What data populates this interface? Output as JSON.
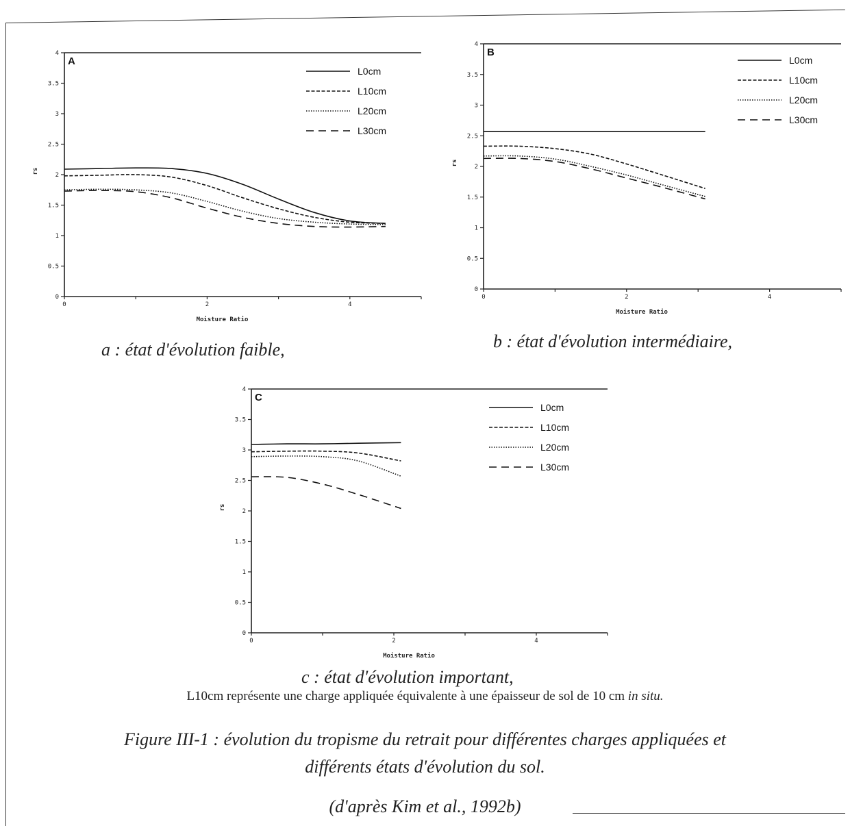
{
  "chart_data": [
    {
      "type": "line",
      "panel": "A",
      "xlabel": "Moisture Ratio",
      "ylabel": "rs",
      "xlim": [
        0,
        5
      ],
      "ylim": [
        0,
        4
      ],
      "x_ticks": [
        "0",
        "2",
        "4"
      ],
      "y_ticks": [
        "0",
        "0.5",
        "1",
        "1.5",
        "2",
        "2.5",
        "3",
        "3.5",
        "4"
      ],
      "legend_position": "top-right",
      "series": [
        {
          "name": "L0cm",
          "style": "solid",
          "x": [
            0,
            0.5,
            1,
            1.5,
            2,
            2.5,
            3,
            3.5,
            4,
            4.5
          ],
          "y": [
            2.09,
            2.1,
            2.11,
            2.1,
            2.02,
            1.84,
            1.6,
            1.38,
            1.24,
            1.2
          ]
        },
        {
          "name": "L10cm",
          "style": "dash-fine",
          "x": [
            0,
            0.5,
            1,
            1.5,
            2,
            2.5,
            3,
            3.5,
            4,
            4.5
          ],
          "y": [
            1.98,
            1.99,
            2.0,
            1.96,
            1.82,
            1.62,
            1.44,
            1.3,
            1.22,
            1.2
          ]
        },
        {
          "name": "L20cm",
          "style": "dotted",
          "x": [
            0,
            0.5,
            1,
            1.5,
            2,
            2.5,
            3,
            3.5,
            4,
            4.5
          ],
          "y": [
            1.75,
            1.76,
            1.75,
            1.7,
            1.56,
            1.4,
            1.28,
            1.22,
            1.19,
            1.18
          ]
        },
        {
          "name": "L30cm",
          "style": "dash-long",
          "x": [
            0,
            0.5,
            1,
            1.5,
            2,
            2.5,
            3,
            3.5,
            4,
            4.5
          ],
          "y": [
            1.73,
            1.74,
            1.72,
            1.62,
            1.45,
            1.3,
            1.2,
            1.15,
            1.14,
            1.15
          ]
        }
      ]
    },
    {
      "type": "line",
      "panel": "B",
      "xlabel": "Moisture Ratio",
      "ylabel": "rs",
      "xlim": [
        0,
        5
      ],
      "ylim": [
        0,
        4
      ],
      "x_ticks": [
        "0",
        "2",
        "4"
      ],
      "y_ticks": [
        "0",
        "0.5",
        "1",
        "1.5",
        "2",
        "2.5",
        "3",
        "3.5",
        "4"
      ],
      "legend_position": "top-right",
      "series": [
        {
          "name": "L0cm",
          "style": "solid",
          "x": [
            0,
            0.5,
            1,
            1.5,
            2,
            2.5,
            3.1
          ],
          "y": [
            2.57,
            2.57,
            2.57,
            2.57,
            2.57,
            2.57,
            2.57
          ]
        },
        {
          "name": "L10cm",
          "style": "dash-fine",
          "x": [
            0,
            0.5,
            1,
            1.5,
            2,
            2.5,
            3.1
          ],
          "y": [
            2.33,
            2.33,
            2.29,
            2.2,
            2.04,
            1.86,
            1.64
          ]
        },
        {
          "name": "L20cm",
          "style": "dotted",
          "x": [
            0,
            0.5,
            1,
            1.5,
            2,
            2.5,
            3.1
          ],
          "y": [
            2.17,
            2.17,
            2.12,
            2.0,
            1.86,
            1.7,
            1.51
          ]
        },
        {
          "name": "L30cm",
          "style": "dash-long",
          "x": [
            0,
            0.5,
            1,
            1.5,
            2,
            2.5,
            3.1
          ],
          "y": [
            2.13,
            2.13,
            2.08,
            1.96,
            1.81,
            1.66,
            1.47
          ]
        }
      ]
    },
    {
      "type": "line",
      "panel": "C",
      "xlabel": "Moisture Ratio",
      "ylabel": "rs",
      "xlim": [
        0,
        5
      ],
      "ylim": [
        0,
        4
      ],
      "x_ticks": [
        "0",
        "2",
        "4"
      ],
      "y_ticks": [
        "0",
        "0.5",
        "1",
        "1.5",
        "2",
        "2.5",
        "3",
        "3.5",
        "4"
      ],
      "legend_position": "top-right",
      "series": [
        {
          "name": "L0cm",
          "style": "solid",
          "x": [
            0,
            0.5,
            1,
            1.5,
            2.1
          ],
          "y": [
            3.09,
            3.1,
            3.1,
            3.11,
            3.12
          ]
        },
        {
          "name": "L10cm",
          "style": "dash-fine",
          "x": [
            0,
            0.5,
            1,
            1.5,
            2.1
          ],
          "y": [
            2.97,
            2.98,
            2.98,
            2.95,
            2.82
          ]
        },
        {
          "name": "L20cm",
          "style": "dotted",
          "x": [
            0,
            0.5,
            1,
            1.5,
            2.1
          ],
          "y": [
            2.89,
            2.9,
            2.89,
            2.82,
            2.57
          ]
        },
        {
          "name": "L30cm",
          "style": "dash-long",
          "x": [
            0,
            0.5,
            1,
            1.5,
            2.1
          ],
          "y": [
            2.56,
            2.55,
            2.44,
            2.27,
            2.04
          ]
        }
      ]
    }
  ],
  "captions": {
    "a": "a : état d'évolution faible,",
    "b": "b : état d'évolution intermédiaire,",
    "c": "c : état d'évolution important,"
  },
  "note": {
    "text": "L10cm représente une charge appliquée équivalente à une épaisseur de sol de 10 cm ",
    "italic": "in situ."
  },
  "figure_title": {
    "line1": "Figure III-1 : évolution du tropisme du retrait pour différentes charges appliquées et",
    "line2": "différents états d'évolution du sol.",
    "source": "(d'après Kim et al., 1992b)"
  }
}
